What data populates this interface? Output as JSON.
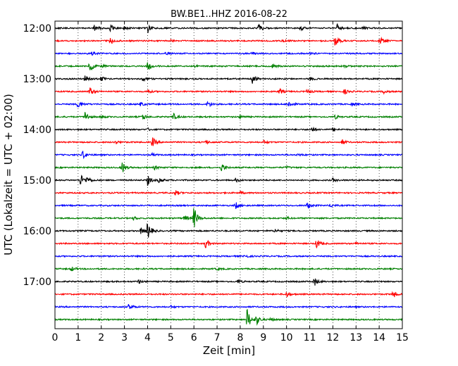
{
  "chart_data": {
    "type": "line",
    "title": "BW.BE1..HHZ 2016-08-22",
    "xlabel": "Zeit  [min]",
    "ylabel": "UTC (Lokalzeit = UTC + 02:00)",
    "xlim": [
      0,
      15
    ],
    "x_ticks": [
      "0",
      "1",
      "2",
      "3",
      "4",
      "5",
      "6",
      "7",
      "8",
      "9",
      "10",
      "11",
      "12",
      "13",
      "14",
      "15"
    ],
    "y_ticks": [
      "12:00",
      "13:00",
      "14:00",
      "15:00",
      "16:00",
      "17:00"
    ],
    "grid": "vertical dotted",
    "trace_interval_minutes": 15,
    "colors": [
      "#000000",
      "#ff0000",
      "#0000ff",
      "#008000"
    ],
    "traces": [
      {
        "start": "12:00",
        "color": "#000000",
        "events": [
          [
            1.7,
            0.5
          ],
          [
            2.4,
            0.6
          ],
          [
            3.0,
            0.3
          ],
          [
            4.0,
            0.8
          ],
          [
            8.8,
            0.6
          ],
          [
            10.6,
            0.4
          ],
          [
            12.2,
            0.7
          ],
          [
            13.3,
            0.3
          ]
        ]
      },
      {
        "start": "12:15",
        "color": "#ff0000",
        "events": [
          [
            2.4,
            0.6
          ],
          [
            5.0,
            0.2
          ],
          [
            9.8,
            0.3
          ],
          [
            12.1,
            0.9
          ],
          [
            14.0,
            0.8
          ]
        ]
      },
      {
        "start": "12:30",
        "color": "#0000ff",
        "events": [
          [
            1.6,
            0.3
          ],
          [
            4.8,
            0.2
          ],
          [
            8.5,
            0.2
          ],
          [
            11.0,
            0.2
          ]
        ]
      },
      {
        "start": "12:45",
        "color": "#008000",
        "events": [
          [
            1.5,
            1.0
          ],
          [
            2.0,
            0.3
          ],
          [
            4.0,
            0.8
          ],
          [
            6.0,
            0.2
          ],
          [
            9.4,
            0.3
          ],
          [
            12.5,
            0.2
          ]
        ]
      },
      {
        "start": "13:00",
        "color": "#000000",
        "events": [
          [
            1.3,
            0.7
          ],
          [
            2.0,
            0.4
          ],
          [
            3.8,
            0.3
          ],
          [
            8.5,
            1.0
          ],
          [
            11.0,
            0.3
          ]
        ]
      },
      {
        "start": "13:15",
        "color": "#ff0000",
        "events": [
          [
            1.5,
            0.8
          ],
          [
            4.0,
            0.3
          ],
          [
            9.7,
            0.5
          ],
          [
            10.9,
            0.4
          ],
          [
            12.5,
            0.4
          ],
          [
            14.2,
            0.3
          ]
        ]
      },
      {
        "start": "13:30",
        "color": "#0000ff",
        "events": [
          [
            1.0,
            0.7
          ],
          [
            3.7,
            0.3
          ],
          [
            6.6,
            0.5
          ],
          [
            10.1,
            0.6
          ],
          [
            12.8,
            0.3
          ]
        ]
      },
      {
        "start": "13:45",
        "color": "#008000",
        "events": [
          [
            1.3,
            0.9
          ],
          [
            2.0,
            0.3
          ],
          [
            3.8,
            0.5
          ],
          [
            5.1,
            0.6
          ],
          [
            8.0,
            0.3
          ],
          [
            12.1,
            0.3
          ]
        ]
      },
      {
        "start": "14:00",
        "color": "#000000",
        "events": [
          [
            4.0,
            0.2
          ],
          [
            11.1,
            0.4
          ],
          [
            12.0,
            0.3
          ]
        ]
      },
      {
        "start": "14:15",
        "color": "#ff0000",
        "events": [
          [
            2.6,
            0.3
          ],
          [
            4.2,
            0.8
          ],
          [
            6.5,
            0.3
          ],
          [
            9.0,
            0.3
          ],
          [
            12.4,
            0.4
          ]
        ]
      },
      {
        "start": "14:30",
        "color": "#0000ff",
        "events": [
          [
            1.2,
            0.7
          ],
          [
            4.2,
            0.2
          ],
          [
            10.5,
            0.2
          ]
        ]
      },
      {
        "start": "14:45",
        "color": "#008000",
        "events": [
          [
            2.9,
            1.0
          ],
          [
            4.3,
            0.3
          ],
          [
            7.2,
            0.7
          ],
          [
            10.0,
            0.2
          ]
        ]
      },
      {
        "start": "15:00",
        "color": "#000000",
        "events": [
          [
            1.1,
            1.0
          ],
          [
            1.4,
            0.6
          ],
          [
            4.0,
            0.8
          ],
          [
            4.5,
            0.4
          ],
          [
            7.8,
            0.3
          ],
          [
            12.0,
            0.3
          ]
        ]
      },
      {
        "start": "15:15",
        "color": "#ff0000",
        "events": [
          [
            5.2,
            0.4
          ],
          [
            8.0,
            0.2
          ]
        ]
      },
      {
        "start": "15:30",
        "color": "#0000ff",
        "events": [
          [
            7.8,
            0.6
          ],
          [
            10.9,
            0.6
          ],
          [
            11.9,
            0.3
          ]
        ]
      },
      {
        "start": "15:45",
        "color": "#008000",
        "events": [
          [
            6.0,
            1.9
          ],
          [
            5.6,
            0.5
          ],
          [
            3.4,
            0.3
          ],
          [
            10.0,
            0.2
          ]
        ]
      },
      {
        "start": "16:00",
        "color": "#000000",
        "events": [
          [
            4.0,
            1.4
          ],
          [
            3.7,
            0.5
          ],
          [
            9.5,
            0.3
          ]
        ]
      },
      {
        "start": "16:15",
        "color": "#ff0000",
        "events": [
          [
            6.5,
            0.8
          ],
          [
            11.3,
            0.8
          ],
          [
            13.0,
            0.2
          ]
        ]
      },
      {
        "start": "16:30",
        "color": "#0000ff",
        "events": [
          [
            8.2,
            0.3
          ]
        ]
      },
      {
        "start": "16:45",
        "color": "#008000",
        "events": [
          [
            0.7,
            0.4
          ],
          [
            7.0,
            0.2
          ]
        ]
      },
      {
        "start": "17:00",
        "color": "#000000",
        "events": [
          [
            3.6,
            0.3
          ],
          [
            7.9,
            0.3
          ],
          [
            11.2,
            0.7
          ]
        ]
      },
      {
        "start": "17:15",
        "color": "#ff0000",
        "events": [
          [
            10.0,
            0.5
          ],
          [
            14.6,
            0.6
          ]
        ]
      },
      {
        "start": "17:30",
        "color": "#0000ff",
        "events": [
          [
            3.2,
            0.6
          ],
          [
            5.0,
            0.2
          ]
        ]
      },
      {
        "start": "17:45",
        "color": "#008000",
        "events": [
          [
            8.3,
            1.9
          ],
          [
            8.7,
            0.8
          ],
          [
            9.3,
            0.3
          ]
        ]
      }
    ]
  }
}
